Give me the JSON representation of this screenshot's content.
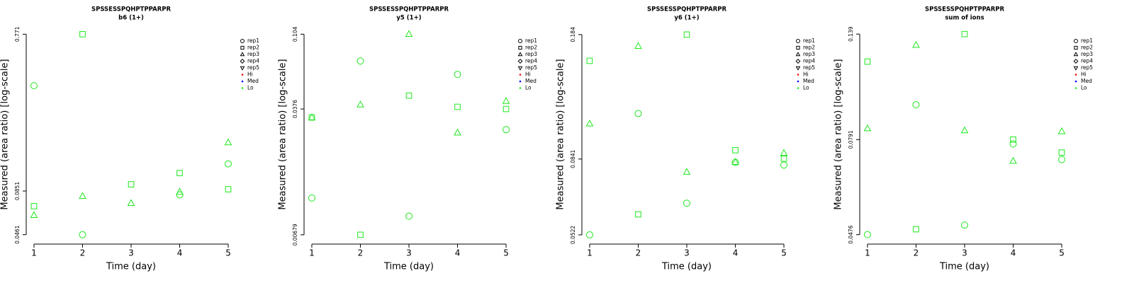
{
  "chart_data": [
    {
      "type": "scatter",
      "title": "SPSSESSPQHPTPPARPR",
      "subtitle": "b6 (1+)",
      "xlabel": "Time (day)",
      "ylabel": "Measured (area ratio) [log-scale]",
      "x": [
        1,
        2,
        3,
        4,
        5
      ],
      "xlim": [
        0.84,
        5.16
      ],
      "xticks": [
        1,
        2,
        3,
        4,
        5
      ],
      "ylim": [
        0.0412,
        0.863
      ],
      "yticks": [
        0.0461,
        0.0851,
        0.771
      ],
      "log_y": true,
      "legend_symbol_color": "#000000",
      "series": [
        {
          "name": "rep1",
          "marker": "circle",
          "color": "#1ee81e",
          "values": [
            0.374,
            0.0461,
            null,
            0.0806,
            0.1247
          ]
        },
        {
          "name": "rep2",
          "marker": "square",
          "color": "#1ee81e",
          "values": [
            0.0688,
            0.771,
            0.0935,
            0.1096,
            0.0873
          ]
        },
        {
          "name": "rep3",
          "marker": "triangle",
          "color": "#1ee81e",
          "values": [
            0.0605,
            0.0791,
            0.0716,
            0.0839,
            0.168
          ]
        },
        {
          "name": "rep4",
          "marker": "diamond",
          "color": "#1ee81e",
          "values": [
            null,
            null,
            null,
            null,
            null
          ]
        },
        {
          "name": "rep5",
          "marker": "triangle-down",
          "color": "#1ee81e",
          "values": [
            null,
            null,
            null,
            null,
            null
          ]
        }
      ],
      "color_legend": [
        {
          "name": "Hi",
          "color": "#ff0000"
        },
        {
          "name": "Med",
          "color": "#0000ff"
        },
        {
          "name": "Lo",
          "color": "#1ee81e"
        }
      ]
    },
    {
      "type": "scatter",
      "title": "SPSSESSPQHPTPPARPR",
      "subtitle": "y5 (1+)",
      "xlabel": "Time (day)",
      "ylabel": "Measured (area ratio) [log-scale]",
      "x": [
        1,
        2,
        3,
        4,
        5
      ],
      "xlim": [
        0.84,
        5.16
      ],
      "xticks": [
        1,
        2,
        3,
        4,
        5
      ],
      "ylim": [
        0.0061,
        0.116
      ],
      "yticks": [
        0.00679,
        0.0376,
        0.104
      ],
      "log_y": true,
      "legend_symbol_color": "#000000",
      "series": [
        {
          "name": "rep1",
          "marker": "circle",
          "color": "#1ee81e",
          "values": [
            0.0112,
            0.0722,
            0.00875,
            0.0602,
            0.0284
          ]
        },
        {
          "name": "rep2",
          "marker": "square",
          "color": "#1ee81e",
          "values": [
            0.0335,
            0.00679,
            0.0451,
            0.0387,
            0.0376
          ]
        },
        {
          "name": "rep3",
          "marker": "triangle",
          "color": "#1ee81e",
          "values": [
            0.0335,
            0.0398,
            0.104,
            0.0272,
            0.0418
          ]
        },
        {
          "name": "rep4",
          "marker": "diamond",
          "color": "#1ee81e",
          "values": [
            null,
            null,
            null,
            null,
            null
          ]
        },
        {
          "name": "rep5",
          "marker": "triangle-down",
          "color": "#1ee81e",
          "values": [
            null,
            null,
            null,
            null,
            null
          ]
        }
      ],
      "color_legend": [
        {
          "name": "Hi",
          "color": "#ff0000"
        },
        {
          "name": "Med",
          "color": "#0000ff"
        },
        {
          "name": "Lo",
          "color": "#1ee81e"
        }
      ]
    },
    {
      "type": "scatter",
      "title": "SPSSESSPQHPTPPARPR",
      "subtitle": "y6 (1+)",
      "xlabel": "Time (day)",
      "ylabel": "Measured (area ratio) [log-scale]",
      "x": [
        1,
        2,
        3,
        4,
        5
      ],
      "xlim": [
        0.84,
        5.16
      ],
      "xticks": [
        1,
        2,
        3,
        4,
        5
      ],
      "ylim": [
        0.0497,
        0.194
      ],
      "yticks": [
        0.0522,
        0.0841,
        0.184
      ],
      "log_y": true,
      "legend_symbol_color": "#000000",
      "series": [
        {
          "name": "rep1",
          "marker": "circle",
          "color": "#1ee81e",
          "values": [
            0.0522,
            0.112,
            0.0637,
            0.0824,
            0.081
          ]
        },
        {
          "name": "rep2",
          "marker": "square",
          "color": "#1ee81e",
          "values": [
            0.156,
            0.0594,
            0.184,
            0.0889,
            0.0843
          ]
        },
        {
          "name": "rep3",
          "marker": "triangle",
          "color": "#1ee81e",
          "values": [
            0.105,
            0.171,
            0.0775,
            0.0824,
            0.0873
          ]
        },
        {
          "name": "rep4",
          "marker": "diamond",
          "color": "#1ee81e",
          "values": [
            null,
            null,
            null,
            null,
            null
          ]
        },
        {
          "name": "rep5",
          "marker": "triangle-down",
          "color": "#1ee81e",
          "values": [
            null,
            null,
            null,
            null,
            null
          ]
        }
      ],
      "color_legend": [
        {
          "name": "Hi",
          "color": "#ff0000"
        },
        {
          "name": "Med",
          "color": "#0000ff"
        },
        {
          "name": "Lo",
          "color": "#1ee81e"
        }
      ]
    },
    {
      "type": "scatter",
      "title": "SPSSESSPQHPTPPARPR",
      "subtitle": "sum of ions",
      "xlabel": "Time (day)",
      "ylabel": "Measured (area ratio) [log-scale]",
      "x": [
        1,
        2,
        3,
        4,
        5
      ],
      "xlim": [
        0.84,
        5.16
      ],
      "xticks": [
        1,
        2,
        3,
        4,
        5
      ],
      "ylim": [
        0.0456,
        0.145
      ],
      "yticks": [
        0.0476,
        0.0791,
        0.139
      ],
      "log_y": true,
      "legend_symbol_color": "#000000",
      "series": [
        {
          "name": "rep1",
          "marker": "circle",
          "color": "#1ee81e",
          "values": [
            0.0476,
            0.0953,
            0.0501,
            0.0773,
            0.0711
          ]
        },
        {
          "name": "rep2",
          "marker": "square",
          "color": "#1ee81e",
          "values": [
            0.12,
            0.049,
            0.139,
            0.0791,
            0.0738
          ]
        },
        {
          "name": "rep3",
          "marker": "triangle",
          "color": "#1ee81e",
          "values": [
            0.0839,
            0.131,
            0.083,
            0.0705,
            0.0826
          ]
        },
        {
          "name": "rep4",
          "marker": "diamond",
          "color": "#1ee81e",
          "values": [
            null,
            null,
            null,
            null,
            null
          ]
        },
        {
          "name": "rep5",
          "marker": "triangle-down",
          "color": "#1ee81e",
          "values": [
            null,
            null,
            null,
            null,
            null
          ]
        }
      ],
      "color_legend": [
        {
          "name": "Hi",
          "color": "#ff0000"
        },
        {
          "name": "Med",
          "color": "#0000ff"
        },
        {
          "name": "Lo",
          "color": "#1ee81e"
        }
      ]
    }
  ]
}
